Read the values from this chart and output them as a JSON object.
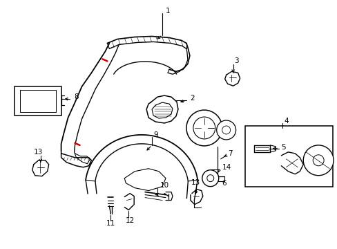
{
  "background_color": "#ffffff",
  "line_color": "#000000",
  "red_color": "#cc0000",
  "figsize": [
    4.89,
    3.6
  ],
  "dpi": 100
}
